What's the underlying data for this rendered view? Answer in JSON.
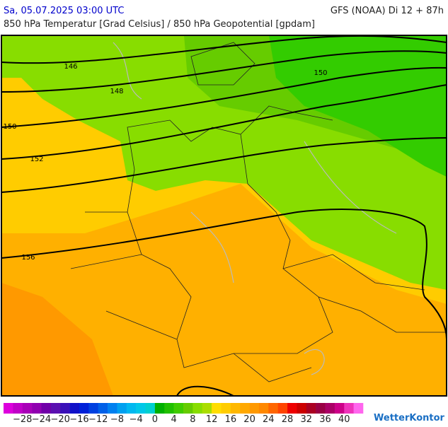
{
  "header": {
    "left": "Sa, 05.07.2025 03:00 UTC",
    "right": "GFS (NOAA) Di 12 + 87h",
    "subtitle": "850 hPa Temperatur [Grad Celsius] / 850 hPa Geopotential [gpdam]"
  },
  "contour_labels": [
    "146",
    "148",
    "150",
    "152",
    "156",
    "150"
  ],
  "colorbar": {
    "labels": [
      "−28",
      "−24",
      "−20",
      "−16",
      "−12",
      "−8",
      "−4",
      "0",
      "4",
      "8",
      "12",
      "16",
      "20",
      "24",
      "28",
      "32",
      "36",
      "40"
    ],
    "colors": [
      "#dd00dd",
      "#c000c8",
      "#a800b8",
      "#9000b0",
      "#7000a8",
      "#5a10b0",
      "#3a10b8",
      "#1010c8",
      "#0020d8",
      "#0040e0",
      "#0060e8",
      "#0080f0",
      "#00a0f0",
      "#00b8f0",
      "#00c8e8",
      "#00d0d0",
      "#00b000",
      "#20c000",
      "#40cc00",
      "#66cc00",
      "#88dd00",
      "#aadd00",
      "#ffdd00",
      "#ffcc00",
      "#ffb800",
      "#ffa800",
      "#ff9900",
      "#ff8800",
      "#ff6600",
      "#ff4400",
      "#ee0000",
      "#cc0000",
      "#aa0022",
      "#990044",
      "#aa0066",
      "#cc0088",
      "#ee33bb",
      "#ff66ee"
    ]
  },
  "brand": "WetterKontor"
}
